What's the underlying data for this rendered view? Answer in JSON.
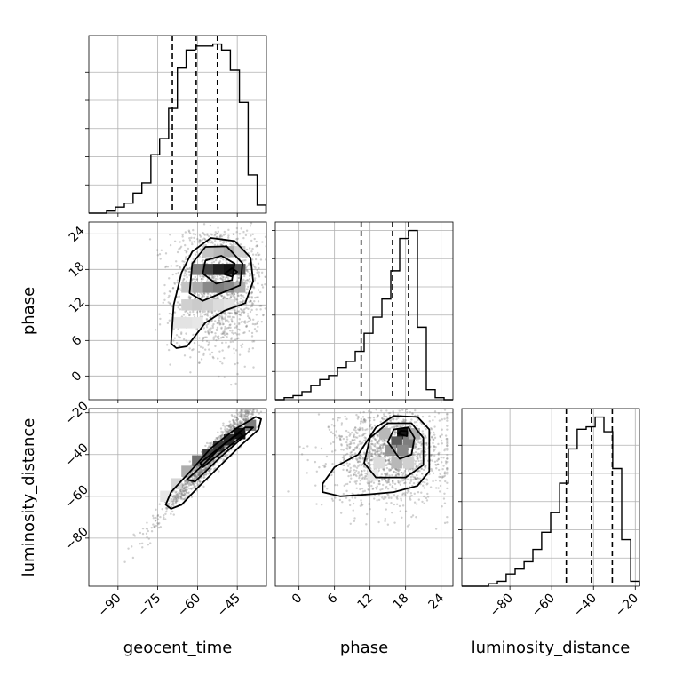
{
  "chart_data": {
    "type": "corner",
    "parameters": [
      "geocent_time",
      "phase",
      "luminosity_distance"
    ],
    "ranges": {
      "geocent_time": [
        -101,
        -34
      ],
      "phase": [
        -4,
        26
      ],
      "luminosity_distance": [
        -103,
        -18
      ]
    },
    "ticks": {
      "geocent_time": [
        -90,
        -75,
        -60,
        -45
      ],
      "phase": [
        0,
        6,
        12,
        18,
        24
      ],
      "luminosity_distance": [
        -80,
        -60,
        -40,
        -20
      ]
    },
    "quantiles": {
      "geocent_time": [
        -69.5,
        -60.5,
        -52.5
      ],
      "phase": [
        10.5,
        15.8,
        18.5
      ],
      "luminosity_distance": [
        -53,
        -41,
        -31
      ]
    },
    "histograms": {
      "geocent_time": {
        "edges": [
          -101,
          -97.7,
          -94.3,
          -91,
          -87.6,
          -84.3,
          -81,
          -77.6,
          -74.3,
          -70.9,
          -67.6,
          -64.3,
          -60.9,
          -57.6,
          -54.2,
          -50.9,
          -47.6,
          -44.2,
          -40.9,
          -37.5,
          -34.2
        ],
        "counts": [
          0,
          0,
          1,
          3,
          5,
          10,
          15,
          29,
          37,
          52,
          72,
          81,
          83,
          83,
          84,
          81,
          71,
          55,
          19,
          4
        ]
      },
      "phase": {
        "edges": [
          -4,
          -2.5,
          -1,
          0.5,
          2,
          3.5,
          5,
          6.5,
          8,
          9.5,
          11,
          12.5,
          14,
          15.5,
          17,
          18.5,
          20,
          21.5,
          23,
          24.5,
          26
        ],
        "counts": [
          0,
          1,
          2,
          4,
          7,
          10,
          12,
          16,
          19,
          24,
          33,
          41,
          50,
          64,
          80,
          84,
          36,
          5,
          1,
          0
        ]
      },
      "luminosity_distance": {
        "edges": [
          -103,
          -98.8,
          -94.5,
          -90.2,
          -86,
          -81.8,
          -77.5,
          -73.2,
          -69,
          -64.8,
          -60.5,
          -56.2,
          -52,
          -47.8,
          -43.5,
          -39.2,
          -35,
          -30.8,
          -26.5,
          -22.2,
          -18
        ],
        "counts": [
          0,
          0,
          0,
          1,
          2,
          5,
          7,
          10,
          15,
          22,
          30,
          42,
          56,
          64,
          65,
          69,
          63,
          48,
          19,
          2
        ]
      }
    },
    "pairs": [
      {
        "x": "geocent_time",
        "y": "phase",
        "density_cells": [
          [
            -56,
            18,
            0.8
          ],
          [
            -52,
            18,
            0.95
          ],
          [
            -48,
            18,
            1.0
          ],
          [
            -44,
            18,
            0.75
          ],
          [
            -60,
            18,
            0.55
          ],
          [
            -56,
            15,
            0.5
          ],
          [
            -52,
            15,
            0.55
          ],
          [
            -48,
            15,
            0.5
          ],
          [
            -60,
            15,
            0.35
          ],
          [
            -44,
            15,
            0.35
          ],
          [
            -64,
            15,
            0.25
          ],
          [
            -64,
            12,
            0.2
          ],
          [
            -60,
            12,
            0.22
          ],
          [
            -56,
            12,
            0.2
          ],
          [
            -52,
            12,
            0.15
          ],
          [
            -48,
            12,
            0.12
          ],
          [
            -68,
            9,
            0.12
          ],
          [
            -64,
            9,
            0.12
          ],
          [
            -60,
            9,
            0.1
          ],
          [
            -52,
            21,
            0.3
          ],
          [
            -48,
            21,
            0.35
          ],
          [
            -44,
            21,
            0.2
          ],
          [
            -56,
            21,
            0.25
          ]
        ],
        "contours": [
          [
            [
              -70,
              5.5
            ],
            [
              -69,
              12
            ],
            [
              -66,
              17.5
            ],
            [
              -62,
              21
            ],
            [
              -55,
              23.3
            ],
            [
              -46,
              22.8
            ],
            [
              -40,
              20
            ],
            [
              -39,
              16
            ],
            [
              -42,
              12.3
            ],
            [
              -50,
              11
            ],
            [
              -57,
              9
            ],
            [
              -64,
              5
            ],
            [
              -68,
              4.7
            ]
          ],
          [
            [
              -63,
              14
            ],
            [
              -62,
              19
            ],
            [
              -57,
              21.8
            ],
            [
              -49,
              21.9
            ],
            [
              -43,
              19
            ],
            [
              -44,
              15.3
            ],
            [
              -51,
              14
            ],
            [
              -58,
              12.7
            ]
          ],
          [
            [
              -58,
              17.3
            ],
            [
              -57,
              19.5
            ],
            [
              -51,
              20.3
            ],
            [
              -46,
              19
            ],
            [
              -47,
              16.2
            ],
            [
              -53,
              15.6
            ]
          ],
          [
            [
              -50,
              17.2
            ],
            [
              -47,
              18.2
            ],
            [
              -45,
              17.6
            ],
            [
              -47,
              16.8
            ]
          ]
        ]
      },
      {
        "x": "geocent_time",
        "y": "luminosity_distance",
        "density_cells": [
          [
            -44,
            -30,
            1.0
          ],
          [
            -48,
            -33,
            0.9
          ],
          [
            -52,
            -36,
            0.85
          ],
          [
            -56,
            -40,
            0.8
          ],
          [
            -60,
            -43,
            0.6
          ],
          [
            -40,
            -26,
            0.55
          ],
          [
            -64,
            -48,
            0.35
          ],
          [
            -68,
            -54,
            0.18
          ],
          [
            -72,
            -60,
            0.1
          ]
        ],
        "contours": [
          [
            [
              -72,
              -64
            ],
            [
              -70,
              -58
            ],
            [
              -62,
              -47
            ],
            [
              -55,
              -37
            ],
            [
              -46,
              -28
            ],
            [
              -38,
              -22
            ],
            [
              -36,
              -23
            ],
            [
              -37,
              -28
            ],
            [
              -44,
              -36
            ],
            [
              -52,
              -46
            ],
            [
              -60,
              -56
            ],
            [
              -66,
              -64
            ],
            [
              -70,
              -66
            ]
          ],
          [
            [
              -64,
              -52
            ],
            [
              -58,
              -45
            ],
            [
              -50,
              -35
            ],
            [
              -42,
              -27
            ],
            [
              -39,
              -27
            ],
            [
              -44,
              -33
            ],
            [
              -52,
              -42
            ],
            [
              -61,
              -53
            ]
          ],
          [
            [
              -59,
              -44
            ],
            [
              -51,
              -36
            ],
            [
              -44,
              -29.5
            ],
            [
              -43,
              -31
            ],
            [
              -50,
              -38
            ],
            [
              -58,
              -46
            ]
          ]
        ]
      },
      {
        "x": "phase",
        "y": "luminosity_distance",
        "density_cells": [
          [
            17.5,
            -30,
            1.0
          ],
          [
            16.5,
            -34,
            0.7
          ],
          [
            18.5,
            -34,
            0.55
          ],
          [
            15.5,
            -38,
            0.45
          ],
          [
            17.5,
            -38,
            0.5
          ],
          [
            19.5,
            -30,
            0.35
          ],
          [
            14.5,
            -30,
            0.3
          ],
          [
            16.5,
            -44,
            0.3
          ],
          [
            13.5,
            -44,
            0.15
          ],
          [
            18.5,
            -44,
            0.2
          ],
          [
            12.5,
            -50,
            0.1
          ]
        ],
        "contours": [
          [
            [
              4,
              -54
            ],
            [
              6,
              -46
            ],
            [
              10,
              -40
            ],
            [
              13,
              -27
            ],
            [
              16,
              -21.5
            ],
            [
              20,
              -22
            ],
            [
              22,
              -28
            ],
            [
              22,
              -48
            ],
            [
              20,
              -55
            ],
            [
              16,
              -58
            ],
            [
              12,
              -59
            ],
            [
              7,
              -60
            ],
            [
              4,
              -58
            ]
          ],
          [
            [
              11,
              -44
            ],
            [
              12,
              -32
            ],
            [
              15,
              -25
            ],
            [
              19,
              -25
            ],
            [
              21,
              -32
            ],
            [
              21,
              -45
            ],
            [
              18,
              -51
            ],
            [
              13,
              -51
            ]
          ],
          [
            [
              15,
              -34
            ],
            [
              16,
              -28
            ],
            [
              18.5,
              -27
            ],
            [
              19.5,
              -32
            ],
            [
              19,
              -40
            ],
            [
              17,
              -42
            ]
          ],
          [
            [
              16.7,
              -30
            ],
            [
              17.2,
              -28.6
            ],
            [
              18.3,
              -28.8
            ],
            [
              18.2,
              -31.2
            ]
          ]
        ]
      }
    ]
  }
}
